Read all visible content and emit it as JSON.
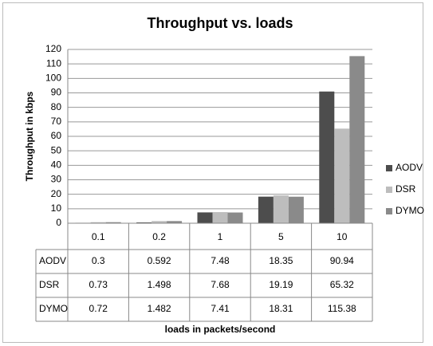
{
  "chart_data": {
    "type": "bar",
    "title": "Throughput vs.  loads",
    "y_label": "Throughput in kbps",
    "x_label": "loads in packets/second",
    "categories": [
      "0.1",
      "0.2",
      "1",
      "5",
      "10"
    ],
    "series": [
      {
        "name": "AODV",
        "color": "#4d4d4d",
        "values": [
          0.3,
          0.592,
          7.48,
          18.35,
          90.94
        ]
      },
      {
        "name": "DSR",
        "color": "#bdbdbd",
        "values": [
          0.73,
          1.498,
          7.68,
          19.19,
          65.32
        ]
      },
      {
        "name": "DYMO",
        "color": "#8a8a8a",
        "values": [
          0.72,
          1.482,
          7.41,
          18.31,
          115.38
        ]
      }
    ],
    "ylim": [
      0,
      120
    ],
    "yticks": [
      0,
      10,
      20,
      30,
      40,
      50,
      60,
      70,
      80,
      90,
      100,
      110,
      120
    ],
    "grid": true,
    "legend": "right",
    "data_table": true
  }
}
